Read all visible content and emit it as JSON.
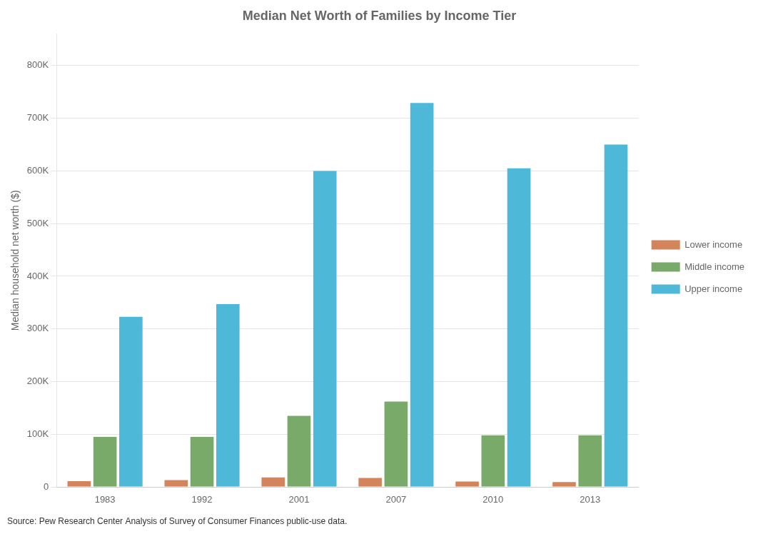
{
  "chart_data": {
    "type": "bar",
    "title": "Median Net Worth of Families by Income Tier",
    "ylabel": "Median household net worth ($)",
    "source": "Source: Pew Research Center Analysis of Survey of Consumer Finances public-use data.",
    "categories": [
      "1983",
      "1992",
      "2001",
      "2007",
      "2010",
      "2013"
    ],
    "series": [
      {
        "name": "Lower income",
        "color": "#d4845a",
        "values": [
          11000,
          13000,
          18000,
          17000,
          10000,
          9000
        ]
      },
      {
        "name": "Middle income",
        "color": "#7aaa6a",
        "values": [
          95000,
          95000,
          135000,
          162000,
          98000,
          98000
        ]
      },
      {
        "name": "Upper income",
        "color": "#4db8d8",
        "values": [
          323000,
          347000,
          600000,
          729000,
          605000,
          650000
        ]
      }
    ],
    "ylim": [
      0,
      860000
    ],
    "yticks": [
      0,
      {
        "value": 100000,
        "label": "100K"
      },
      {
        "value": 200000,
        "label": "200K"
      },
      {
        "value": 300000,
        "label": "300K"
      },
      {
        "value": 400000,
        "label": "400K"
      },
      {
        "value": 500000,
        "label": "500K"
      },
      {
        "value": 600000,
        "label": "600K"
      },
      {
        "value": 700000,
        "label": "700K"
      },
      {
        "value": 800000,
        "label": "800K"
      }
    ],
    "grid": true,
    "legend": "right"
  }
}
